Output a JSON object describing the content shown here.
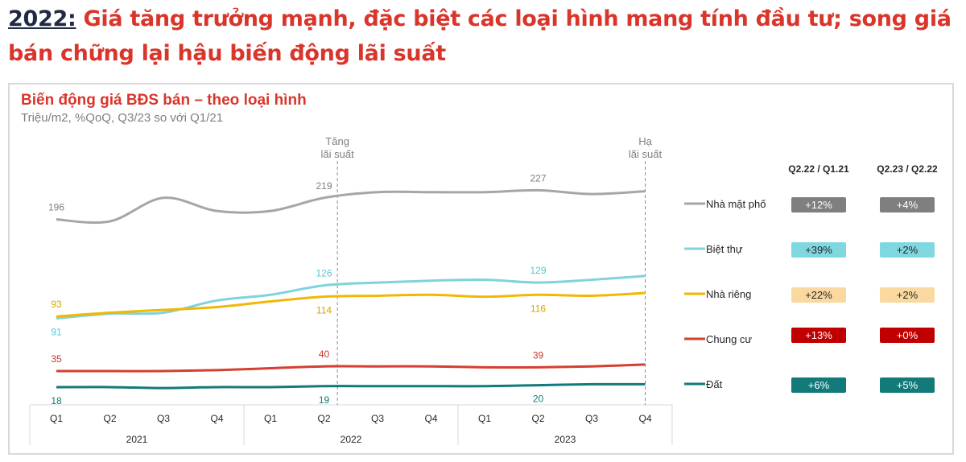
{
  "headline": {
    "year": "2022:",
    "text": " Giá tăng trưởng mạnh, đặc biệt các loại hình mang tính đầu tư; song giá bán chững lại hậu biến động lãi suất"
  },
  "chart_data": {
    "type": "line",
    "title": "Biến động giá BĐS bán – theo loại hình",
    "subtitle": "Triệu/m2, %QoQ, Q3/23 so với Q1/21",
    "quarters": [
      "Q1",
      "Q2",
      "Q3",
      "Q4",
      "Q1",
      "Q2",
      "Q3",
      "Q4",
      "Q1",
      "Q2",
      "Q3",
      "Q4"
    ],
    "years": [
      "2021",
      "2022",
      "2023"
    ],
    "grid": false,
    "legend_position": "right",
    "annotations": [
      {
        "text_lines": [
          "Tăng",
          "lãi suất"
        ],
        "at_index": 5.25
      },
      {
        "text_lines": [
          "Hạ",
          "lãi suất"
        ],
        "at_index": 11
      }
    ],
    "series": [
      {
        "name": "Nhà mặt phố",
        "color": "#a6a6a6",
        "values": [
          196,
          194,
          219,
          205,
          205,
          219,
          225,
          225,
          225,
          227,
          223,
          226
        ],
        "labeled_points": [
          0,
          5,
          9
        ],
        "label_side": "above"
      },
      {
        "name": "Biệt thự",
        "color": "#7fd3dc",
        "values": [
          91,
          96,
          97,
          110,
          116,
          126,
          129,
          131,
          132,
          129,
          132,
          136
        ],
        "labeled_points": [
          0,
          5,
          9
        ],
        "label_side": [
          "below",
          "above",
          "above"
        ]
      },
      {
        "name": "Nhà riêng",
        "color": "#f2b705",
        "values": [
          93,
          97,
          100,
          103,
          109,
          114,
          115,
          116,
          114,
          116,
          115,
          118
        ],
        "labeled_points": [
          0,
          5,
          9
        ],
        "label_side": [
          "above",
          "below",
          "below"
        ]
      },
      {
        "name": "Chung cư",
        "color": "#d43f31",
        "values": [
          35,
          35,
          35,
          36,
          38,
          40,
          40,
          40,
          39,
          39,
          40,
          42
        ],
        "labeled_points": [
          0,
          5,
          9
        ],
        "label_side": "above"
      },
      {
        "name": "Đất",
        "color": "#137a7a",
        "values": [
          18,
          18,
          17,
          18,
          18,
          19,
          19,
          19,
          19,
          20,
          21,
          21
        ],
        "labeled_points": [
          0,
          5,
          9
        ],
        "label_side": "below"
      }
    ],
    "label_colors": {
      "Nhà mặt phố": "#7f7f7f",
      "Biệt thự": "#5bc6d1",
      "Nhà riêng": "#d9a400",
      "Chung cư": "#c0392b",
      "Đất": "#137a7a"
    },
    "table": {
      "headers": [
        "Q2.22 / Q1.21",
        "Q2.23 / Q2.22"
      ],
      "rows": [
        {
          "name": "Nhà mặt phố",
          "values": [
            "+12%",
            "+4%"
          ],
          "bg": "#7f7f7f",
          "fg": "#ffffff"
        },
        {
          "name": "Biệt thự",
          "values": [
            "+39%",
            "+2%"
          ],
          "bg": "#7fd8e0",
          "fg": "#262626"
        },
        {
          "name": "Nhà riêng",
          "values": [
            "+22%",
            "+2%"
          ],
          "bg": "#fad9a0",
          "fg": "#262626"
        },
        {
          "name": "Chung cư",
          "values": [
            "+13%",
            "+0%"
          ],
          "bg": "#c00000",
          "fg": "#ffffff"
        },
        {
          "name": "Đất",
          "values": [
            "+6%",
            "+5%"
          ],
          "bg": "#137a7a",
          "fg": "#ffffff"
        }
      ]
    }
  }
}
